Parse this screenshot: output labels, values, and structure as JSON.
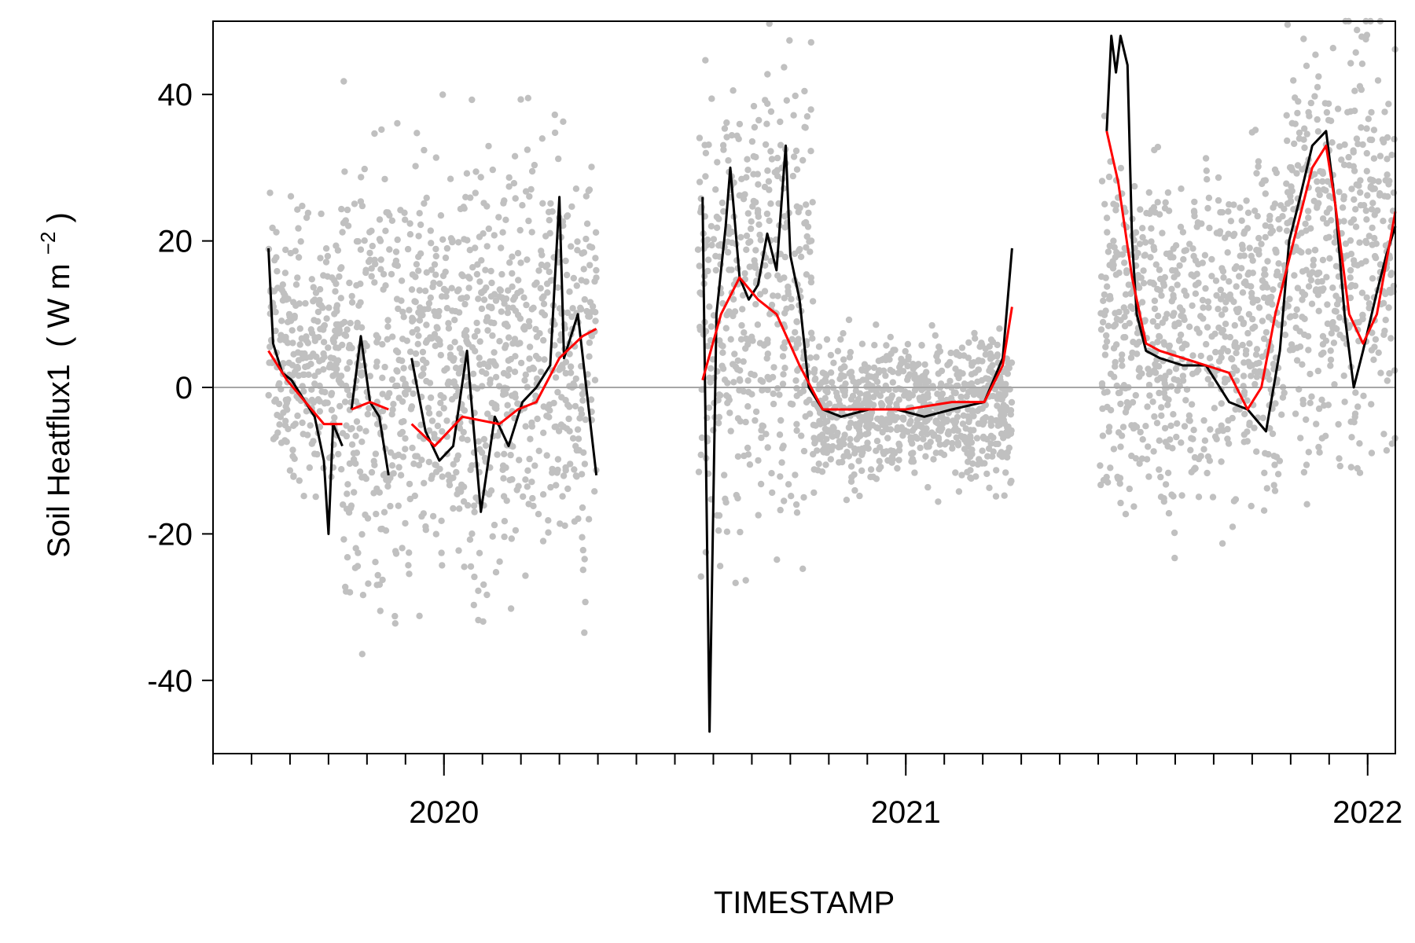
{
  "chart_data": {
    "type": "line",
    "xlabel": "TIMESTAMP",
    "ylabel": "Soil Heatflux1",
    "ylabel_units": [
      "( W m",
      "−2",
      " )"
    ],
    "xlim": [
      2019.5,
      2022.06
    ],
    "ylim": [
      -50,
      50
    ],
    "yticks": [
      -40,
      -20,
      0,
      20,
      40
    ],
    "xticks_major": [
      {
        "value": 2020,
        "label": "2020"
      },
      {
        "value": 2021,
        "label": "2021"
      },
      {
        "value": 2022,
        "label": "2022"
      }
    ],
    "xticks_minor_step_months": 1,
    "reference_line": {
      "y": 0,
      "color": "#a6a6a6"
    },
    "grid": false,
    "legend": "none",
    "series": [
      {
        "role": "raw-points",
        "color": "#c0c0c0",
        "segments": [
          {
            "start": 2019.62,
            "end": 2019.78,
            "center": 5,
            "spread": 25
          },
          {
            "start": 2019.78,
            "end": 2019.92,
            "center": 0,
            "spread": 45
          },
          {
            "start": 2019.92,
            "end": 2020.33,
            "center": 3,
            "spread": 42
          },
          {
            "start": 2020.55,
            "end": 2020.8,
            "center": 12,
            "spread": 45
          },
          {
            "start": 2020.8,
            "end": 2021.23,
            "center": -3,
            "spread": 14
          },
          {
            "start": 2021.42,
            "end": 2021.82,
            "center": 8,
            "spread": 33
          },
          {
            "start": 2021.82,
            "end": 2022.06,
            "center": 18,
            "spread": 40
          }
        ]
      },
      {
        "role": "daily-mean",
        "color": "#000000",
        "segments": [
          [
            [
              2019.62,
              19
            ],
            [
              2019.63,
              6
            ],
            [
              2019.65,
              2
            ],
            [
              2019.67,
              1
            ],
            [
              2019.7,
              -2
            ],
            [
              2019.72,
              -4
            ],
            [
              2019.74,
              -10
            ],
            [
              2019.75,
              -20
            ],
            [
              2019.76,
              -5
            ],
            [
              2019.78,
              -8
            ]
          ],
          [
            [
              2019.8,
              -3
            ],
            [
              2019.82,
              7
            ],
            [
              2019.84,
              -2
            ],
            [
              2019.86,
              -4
            ],
            [
              2019.88,
              -12
            ]
          ],
          [
            [
              2019.93,
              4
            ],
            [
              2019.96,
              -6
            ],
            [
              2019.99,
              -10
            ],
            [
              2020.02,
              -8
            ],
            [
              2020.05,
              5
            ],
            [
              2020.08,
              -17
            ],
            [
              2020.11,
              -4
            ],
            [
              2020.14,
              -8
            ],
            [
              2020.17,
              -2
            ],
            [
              2020.2,
              0
            ],
            [
              2020.23,
              3
            ],
            [
              2020.25,
              26
            ],
            [
              2020.26,
              4
            ],
            [
              2020.29,
              10
            ],
            [
              2020.33,
              -12
            ]
          ],
          [
            [
              2020.56,
              26
            ],
            [
              2020.575,
              -47
            ],
            [
              2020.59,
              10
            ],
            [
              2020.61,
              22
            ],
            [
              2020.62,
              30
            ],
            [
              2020.64,
              15
            ],
            [
              2020.66,
              12
            ],
            [
              2020.68,
              14
            ],
            [
              2020.7,
              21
            ],
            [
              2020.72,
              16
            ],
            [
              2020.74,
              33
            ],
            [
              2020.75,
              18
            ],
            [
              2020.77,
              12
            ],
            [
              2020.79,
              0
            ],
            [
              2020.82,
              -3
            ],
            [
              2020.86,
              -4
            ],
            [
              2020.92,
              -3
            ],
            [
              2020.98,
              -3
            ],
            [
              2021.04,
              -4
            ],
            [
              2021.1,
              -3
            ],
            [
              2021.17,
              -2
            ],
            [
              2021.21,
              4
            ],
            [
              2021.23,
              19
            ]
          ],
          [
            [
              2021.435,
              35
            ],
            [
              2021.445,
              48
            ],
            [
              2021.455,
              43
            ],
            [
              2021.465,
              48
            ],
            [
              2021.48,
              44
            ],
            [
              2021.49,
              20
            ],
            [
              2021.5,
              10
            ],
            [
              2021.52,
              5
            ],
            [
              2021.55,
              4
            ],
            [
              2021.6,
              3
            ],
            [
              2021.65,
              3
            ],
            [
              2021.7,
              -2
            ],
            [
              2021.74,
              -3
            ],
            [
              2021.78,
              -6
            ],
            [
              2021.81,
              5
            ],
            [
              2021.83,
              20
            ],
            [
              2021.85,
              25
            ],
            [
              2021.88,
              33
            ],
            [
              2021.91,
              35
            ],
            [
              2021.93,
              25
            ],
            [
              2021.95,
              10
            ],
            [
              2021.97,
              0
            ],
            [
              2021.99,
              5
            ],
            [
              2022.02,
              13
            ],
            [
              2022.04,
              18
            ],
            [
              2022.06,
              22
            ]
          ]
        ]
      },
      {
        "role": "smoothed",
        "color": "#ff0000",
        "segments": [
          [
            [
              2019.62,
              5
            ],
            [
              2019.66,
              1
            ],
            [
              2019.7,
              -2
            ],
            [
              2019.74,
              -5
            ],
            [
              2019.78,
              -5
            ]
          ],
          [
            [
              2019.8,
              -3
            ],
            [
              2019.84,
              -2
            ],
            [
              2019.88,
              -3
            ]
          ],
          [
            [
              2019.93,
              -5
            ],
            [
              2019.98,
              -8
            ],
            [
              2020.04,
              -4
            ],
            [
              2020.12,
              -5
            ],
            [
              2020.16,
              -3
            ],
            [
              2020.2,
              -2
            ],
            [
              2020.25,
              4
            ],
            [
              2020.3,
              7
            ],
            [
              2020.33,
              8
            ]
          ],
          [
            [
              2020.56,
              1
            ],
            [
              2020.6,
              10
            ],
            [
              2020.64,
              15
            ],
            [
              2020.68,
              12
            ],
            [
              2020.72,
              10
            ],
            [
              2020.77,
              3
            ],
            [
              2020.82,
              -3
            ],
            [
              2020.9,
              -3
            ],
            [
              2021.0,
              -3
            ],
            [
              2021.1,
              -2
            ],
            [
              2021.17,
              -2
            ],
            [
              2021.21,
              3
            ],
            [
              2021.23,
              11
            ]
          ],
          [
            [
              2021.435,
              35
            ],
            [
              2021.46,
              28
            ],
            [
              2021.49,
              15
            ],
            [
              2021.52,
              6
            ],
            [
              2021.55,
              5
            ],
            [
              2021.6,
              4
            ],
            [
              2021.65,
              3
            ],
            [
              2021.7,
              2
            ],
            [
              2021.74,
              -3
            ],
            [
              2021.77,
              0
            ],
            [
              2021.8,
              10
            ],
            [
              2021.84,
              20
            ],
            [
              2021.88,
              30
            ],
            [
              2021.91,
              33
            ],
            [
              2021.93,
              25
            ],
            [
              2021.96,
              10
            ],
            [
              2021.99,
              6
            ],
            [
              2022.02,
              10
            ],
            [
              2022.06,
              24
            ]
          ]
        ]
      }
    ]
  }
}
